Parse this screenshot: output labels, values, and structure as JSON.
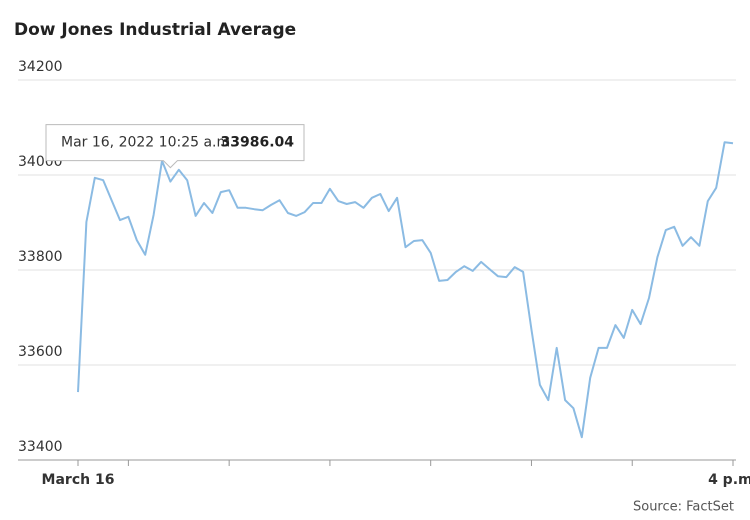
{
  "chart_data": {
    "type": "line",
    "title": "Dow Jones Industrial Average",
    "source": "Source: FactSet",
    "categories": [
      "March 16",
      null,
      null,
      null,
      null,
      null,
      null,
      null,
      null,
      null,
      null,
      null,
      null,
      null,
      null,
      null,
      null,
      null,
      null,
      null,
      null,
      null,
      null,
      null,
      null,
      null,
      null,
      null,
      null,
      null,
      null,
      null,
      null,
      null,
      null,
      null,
      null,
      null,
      null,
      null,
      null,
      null,
      null,
      null,
      null,
      null,
      null,
      null,
      null,
      null,
      null,
      null,
      null,
      null,
      null,
      null,
      null,
      null,
      null,
      null,
      null,
      null,
      null,
      null,
      null,
      null,
      null,
      null,
      null,
      null,
      null,
      null,
      null,
      null,
      null,
      null,
      null,
      null,
      "4 p.m."
    ],
    "series": [
      {
        "name": "Dow Jones Industrial Average",
        "color": "#8bbbe3",
        "values": [
          33543,
          33901,
          33994,
          33989,
          33947,
          33905,
          33912,
          33863,
          33832,
          33916,
          34030,
          33986.04,
          34011,
          33989,
          33914,
          33941,
          33920,
          33964,
          33968,
          33931,
          33931,
          33928,
          33926,
          33937,
          33947,
          33920,
          33914,
          33922,
          33941,
          33941,
          33971,
          33945,
          33939,
          33943,
          33931,
          33952,
          33960,
          33924,
          33952,
          33848,
          33861,
          33863,
          33836,
          33777,
          33779,
          33796,
          33808,
          33798,
          33817,
          33802,
          33787,
          33785,
          33806,
          33796,
          33674,
          33558,
          33526,
          33636,
          33526,
          33509,
          33448,
          33573,
          33636,
          33636,
          33684,
          33657,
          33716,
          33686,
          33741,
          33827,
          33884,
          33891,
          33851,
          33869,
          33851,
          33945,
          33973,
          34069,
          34067
        ]
      }
    ],
    "ylim": [
      33400,
      34200
    ],
    "yticks": [
      33400,
      33600,
      33800,
      34000,
      34200
    ],
    "grid": true,
    "tooltip": {
      "x_label": "Mar 16, 2022 10:25 a.m.",
      "index": 11
    }
  }
}
